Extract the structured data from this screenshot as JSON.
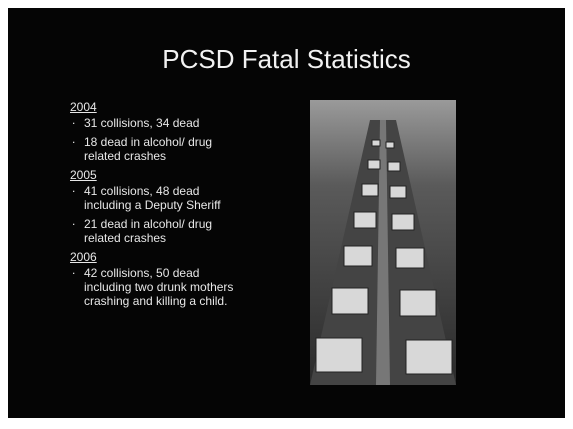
{
  "title": "PCSD Fatal Statistics",
  "sections": [
    {
      "heading": "2004",
      "bullets": [
        "31 collisions, 34 dead",
        "18 dead in alcohol/ drug related crashes"
      ]
    },
    {
      "heading": "2005",
      "bullets": [
        "41 collisions, 48 dead including a Deputy Sheriff",
        "21 dead in alcohol/ drug related crashes"
      ]
    },
    {
      "heading": "2006",
      "bullets": [
        "42 collisions, 50 dead including two drunk mothers crashing and killing a child."
      ]
    }
  ]
}
